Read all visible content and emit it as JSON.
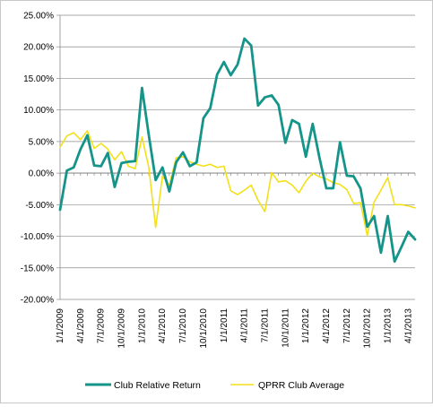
{
  "chart_data": {
    "type": "line",
    "title": "",
    "xlabel": "",
    "ylabel": "",
    "ylim": [
      -0.2,
      0.25
    ],
    "y_ticks": [
      "25.00%",
      "20.00%",
      "15.00%",
      "10.00%",
      "5.00%",
      "0.00%",
      "-5.00%",
      "-10.00%",
      "-15.00%",
      "-20.00%"
    ],
    "x_ticks": [
      "1/1/2009",
      "4/1/2009",
      "7/1/2009",
      "10/1/2009",
      "1/1/2010",
      "4/1/2010",
      "7/1/2010",
      "10/1/2010",
      "1/1/2011",
      "4/1/2011",
      "7/1/2011",
      "10/1/2011",
      "1/1/2012",
      "4/1/2012",
      "7/1/2012",
      "10/1/2012",
      "1/1/2013",
      "4/1/2013"
    ],
    "grid": "horizontal",
    "legend": "bottom",
    "x_start": "1/1/2009",
    "x_step": "1 month",
    "series": [
      {
        "name": "Club Relative Return",
        "color": "#159489",
        "values": [
          -0.058,
          0.004,
          0.009,
          0.038,
          0.06,
          0.012,
          0.011,
          0.032,
          -0.022,
          0.016,
          0.018,
          0.019,
          0.135,
          0.06,
          -0.011,
          0.009,
          -0.029,
          0.017,
          0.033,
          0.011,
          0.017,
          0.087,
          0.103,
          0.156,
          0.176,
          0.155,
          0.172,
          0.213,
          0.202,
          0.107,
          0.12,
          0.123,
          0.108,
          0.048,
          0.084,
          0.078,
          0.026,
          0.078,
          0.024,
          -0.024,
          -0.024,
          0.049,
          -0.004,
          -0.005,
          -0.024,
          -0.085,
          -0.068,
          -0.126,
          -0.068,
          -0.14,
          -0.117,
          -0.093,
          -0.105
        ]
      },
      {
        "name": "QPRR Club Average",
        "color": "#f2e01a",
        "values": [
          0.041,
          0.059,
          0.064,
          0.053,
          0.067,
          0.039,
          0.047,
          0.038,
          0.021,
          0.034,
          0.011,
          0.007,
          0.057,
          0.009,
          -0.086,
          -0.005,
          -0.019,
          0.024,
          0.026,
          0.018,
          0.014,
          0.011,
          0.014,
          0.009,
          0.011,
          -0.028,
          -0.034,
          -0.027,
          -0.019,
          -0.043,
          -0.061,
          0.001,
          -0.014,
          -0.012,
          -0.019,
          -0.031,
          -0.013,
          0.0,
          -0.006,
          -0.009,
          -0.015,
          -0.018,
          -0.026,
          -0.048,
          -0.047,
          -0.099,
          -0.046,
          -0.027,
          -0.007,
          -0.05,
          -0.05,
          -0.052,
          -0.055
        ]
      }
    ]
  }
}
